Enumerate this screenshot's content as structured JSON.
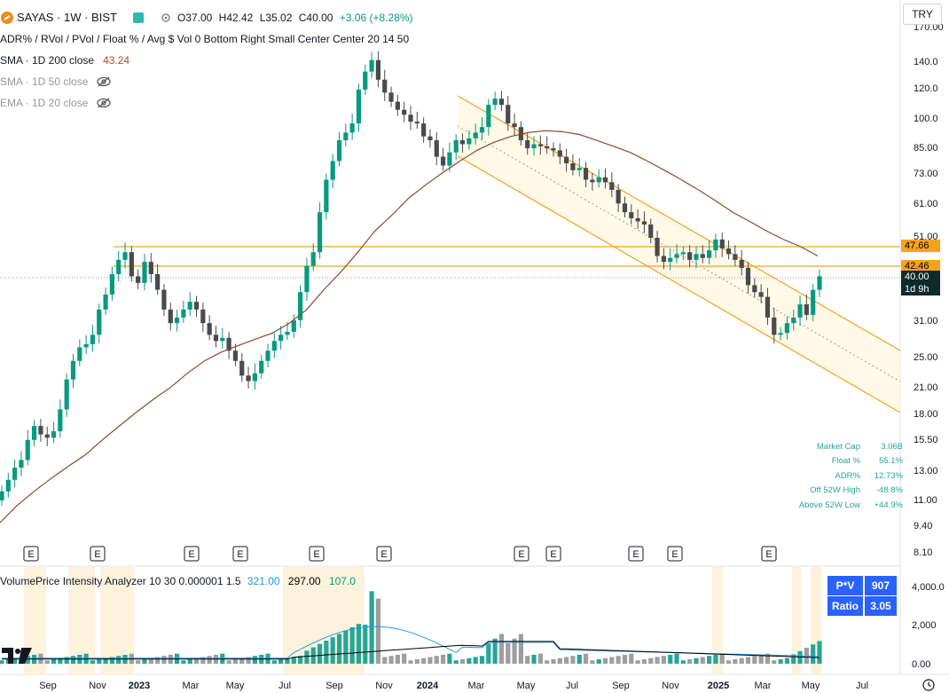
{
  "header": {
    "symbol": "SAYAS · 1W · BIST",
    "ohlc": {
      "o": "O37.00",
      "h": "H42.42",
      "l": "L35.02",
      "c": "C40.00",
      "change": "+3.06 (+8.28%)"
    },
    "indicator_line": "ADR% / RVol / PVol / Float % / Avg $ Vol 0 Bottom Right Small Center Center 20 14 50",
    "ma": [
      {
        "label": "SMA · 1D 200 close",
        "value": "43.24",
        "visible": true
      },
      {
        "label": "SMA · 1D 50 close",
        "value": "",
        "visible": false
      },
      {
        "label": "EMA · 1D 20 close",
        "value": "",
        "visible": false
      }
    ]
  },
  "currency_button": "TRY",
  "price_axis": [
    "170.00",
    "140.0",
    "120.0",
    "100.0",
    "85.00",
    "73.00",
    "61.00",
    "51.00",
    "47.66",
    "42.46",
    "40.00",
    "31.00",
    "25.00",
    "21.00",
    "18.00",
    "15.50",
    "13.00",
    "11.00",
    "9.40",
    "8.10"
  ],
  "price_tags": {
    "level_1": "47.66",
    "level_2": "42.46",
    "last": "40.00",
    "countdown": "1d 9h"
  },
  "volume_axis": [
    "4,000.0",
    "2,000",
    "0.00"
  ],
  "time_axis": [
    "Sep",
    "Nov",
    "2023",
    "Mar",
    "May",
    "Jul",
    "Sep",
    "Nov",
    "2024",
    "Mar",
    "May",
    "Jul",
    "Sep",
    "Nov",
    "2025",
    "Mar",
    "May",
    "Jul"
  ],
  "earnings_marker": "E",
  "stats": [
    {
      "label": "Market Cap",
      "value": "3.06B"
    },
    {
      "label": "Float %",
      "value": "55.1%"
    },
    {
      "label": "ADR%",
      "value": "12.73%"
    },
    {
      "label": "Off 52W High",
      "value": "-48.8%"
    },
    {
      "label": "Above 52W Low",
      "value": "+44.9%"
    }
  ],
  "volume_indicator": {
    "name": "VolumePrice Intensity Analyzer 10 30 0.000001 1.5",
    "v1": "321.00",
    "v2": "297.00",
    "v3": "107.0",
    "table": [
      {
        "label": "P*V",
        "value": "907"
      },
      {
        "label": "Ratio",
        "value": "3.05"
      }
    ]
  },
  "colors": {
    "up": "#089981",
    "down": "#4a4a4a",
    "sma200": "#8b4a2b",
    "channel": "#f7a21b",
    "highlight": "#fdf3dc"
  },
  "chart_data": {
    "type": "candlestick",
    "title": "SAYAS · 1W · BIST",
    "y_scale": "log",
    "ylim": [
      8.1,
      170
    ],
    "time_labels": [
      "Sep",
      "Nov",
      "2023",
      "Mar",
      "May",
      "Jul",
      "Sep",
      "Nov",
      "2024",
      "Mar",
      "May",
      "Jul",
      "Sep",
      "Nov",
      "2025",
      "Mar",
      "May",
      "Jul"
    ],
    "closes": [
      11.5,
      12.3,
      13.2,
      13.8,
      15.5,
      16.8,
      16.0,
      15.7,
      16.3,
      18.5,
      22,
      24.5,
      26.5,
      27,
      28.5,
      33,
      36,
      40.5,
      44,
      46,
      40,
      38.5,
      43.5,
      40.5,
      37,
      33,
      30.5,
      31.5,
      33,
      34.5,
      33,
      30.5,
      28.5,
      27.5,
      28,
      26,
      24.5,
      22.5,
      21.8,
      22.8,
      24.5,
      26,
      27.5,
      28.5,
      29,
      31,
      36.5,
      42.5,
      46,
      58,
      70,
      78,
      88,
      92,
      97,
      118,
      131,
      140,
      125,
      116,
      110,
      105,
      102,
      98,
      97,
      90,
      88,
      80,
      76,
      82,
      88,
      86,
      89,
      92,
      95,
      108,
      112,
      108,
      97,
      95,
      88,
      84,
      86,
      85,
      84,
      83,
      80,
      77,
      74,
      75,
      70,
      69,
      71,
      69,
      66,
      61,
      58,
      56,
      55,
      54,
      50,
      45,
      43.5,
      44.5,
      45.5,
      46,
      44,
      45.5,
      44.5,
      46.5,
      49.5,
      47,
      45.5,
      44,
      42,
      38,
      36.5,
      35.5,
      31.5,
      28.5,
      28.8,
      30.5,
      31.5,
      34,
      32,
      37,
      40
    ],
    "sma200": [
      9.6,
      10.6,
      11.5,
      12.4,
      13.3,
      14.2,
      15.5,
      16.8,
      18.2,
      19.6,
      21.0,
      22.8,
      24.5,
      25.8,
      26.8,
      27.8,
      28.8,
      30.5,
      33,
      37,
      41,
      46,
      52,
      57,
      63,
      68,
      73,
      78,
      83,
      87,
      90,
      92,
      93,
      92.5,
      91,
      88,
      85,
      82,
      78,
      74,
      70,
      66,
      62,
      58,
      55,
      52,
      49.5,
      47.5,
      45
    ],
    "channel": {
      "upper": [
        [
          120,
          122
        ],
        [
          290,
          28
        ]
      ],
      "lower": [
        [
          120,
          85
        ],
        [
          290,
          18
        ]
      ],
      "mid_dotted": true
    },
    "horizontal_levels": [
      47.66,
      42.46
    ],
    "volume_ylim": [
      0,
      4200
    ],
    "volume_series": [
      {
        "name": "P*V"
      },
      {
        "name": "Ratio"
      }
    ]
  }
}
